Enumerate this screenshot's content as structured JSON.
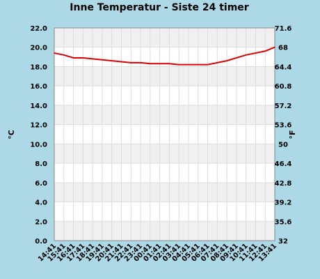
{
  "chart_data": {
    "type": "line",
    "title": "Inne Temperatur - Siste 24 timer",
    "ylabel_left": "°C",
    "ylabel_right": "°F",
    "ylim": [
      0,
      22
    ],
    "y_ticks": [
      "0.0",
      "2.0",
      "4.0",
      "6.0",
      "8.0",
      "10.0",
      "12.0",
      "14.0",
      "16.0",
      "18.0",
      "20.0",
      "22.0"
    ],
    "y2_ticks": [
      "32",
      "35.6",
      "39.2",
      "42.8",
      "46.4",
      "50",
      "53.6",
      "57.2",
      "60.8",
      "64.4",
      "68",
      "71.6"
    ],
    "categories": [
      "14:41",
      "15:41",
      "16:41",
      "17:41",
      "18:41",
      "19:41",
      "20:41",
      "21:41",
      "22:41",
      "23:41",
      "00:41",
      "01:41",
      "02:41",
      "03:41",
      "04:41",
      "05:41",
      "06:41",
      "07:41",
      "08:41",
      "09:41",
      "10:41",
      "11:41",
      "12:41",
      "13:41"
    ],
    "series": [
      {
        "color": "#dd0000",
        "values": [
          19.4,
          19.2,
          18.9,
          18.9,
          18.8,
          18.7,
          18.6,
          18.5,
          18.4,
          18.4,
          18.3,
          18.3,
          18.3,
          18.2,
          18.2,
          18.2,
          18.2,
          18.4,
          18.6,
          18.9,
          19.2,
          19.4,
          19.6,
          20.0
        ]
      }
    ],
    "grid": true,
    "colors": {
      "background": "#add8e6",
      "plot_band_light": "#ffffff",
      "plot_band_dark": "#f0f0f0",
      "line": "#dd0000"
    }
  }
}
